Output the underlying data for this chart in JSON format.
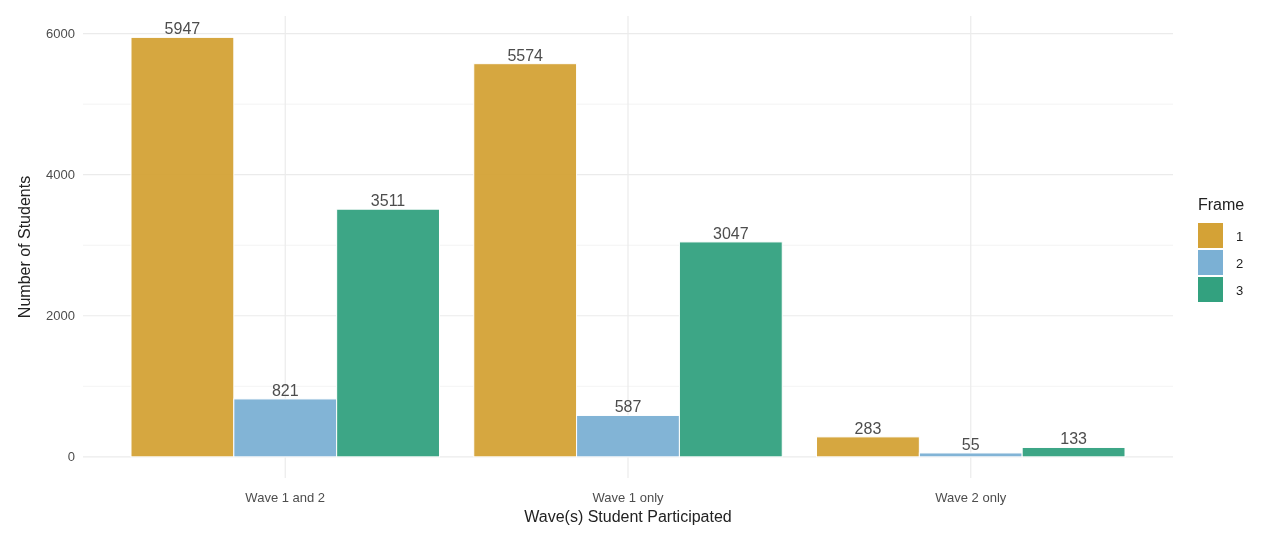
{
  "chart_data": {
    "type": "bar",
    "xlabel": "Wave(s) Student Participated",
    "ylabel": "Number of Students",
    "legend_title": "Frame",
    "categories": [
      "Wave 1 and 2",
      "Wave 1 only",
      "Wave 2 only"
    ],
    "series": [
      {
        "name": "1",
        "color": "#d4a236",
        "values": [
          5947,
          5574,
          283
        ]
      },
      {
        "name": "2",
        "color": "#7bb0d4",
        "values": [
          821,
          587,
          55
        ]
      },
      {
        "name": "3",
        "color": "#33a17f",
        "values": [
          3511,
          3047,
          133
        ]
      }
    ],
    "ylim": [
      -300,
      6250
    ],
    "yticks": [
      0,
      {
        "value": 1000,
        "label": null
      },
      2000,
      {
        "value": 3000,
        "label": null
      },
      4000,
      {
        "value": 5000,
        "label": null
      },
      6000
    ],
    "grid": true,
    "legend": "right",
    "data_labels": true
  }
}
